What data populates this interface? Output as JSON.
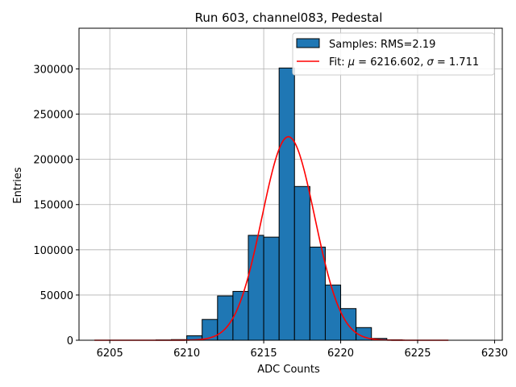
{
  "chart_data": {
    "type": "bar",
    "title": "Run 603, channel083, Pedestal",
    "xlabel": "ADC Counts",
    "ylabel": "Entries",
    "xlim": [
      6203,
      6230.5
    ],
    "ylim": [
      0,
      345000
    ],
    "xticks": [
      6205,
      6210,
      6215,
      6220,
      6225,
      6230
    ],
    "yticks": [
      0,
      50000,
      100000,
      150000,
      200000,
      250000,
      300000
    ],
    "grid": true,
    "legend_position": "top-right",
    "bin_width": 1,
    "series": [
      {
        "name": "Samples: RMS=2.19",
        "kind": "histogram",
        "color": "#1f77b4",
        "bins": [
          {
            "x0": 6208,
            "value": 300
          },
          {
            "x0": 6209,
            "value": 700
          },
          {
            "x0": 6210,
            "value": 5000
          },
          {
            "x0": 6211,
            "value": 23000
          },
          {
            "x0": 6212,
            "value": 49000
          },
          {
            "x0": 6213,
            "value": 54000
          },
          {
            "x0": 6214,
            "value": 116000
          },
          {
            "x0": 6215,
            "value": 114000
          },
          {
            "x0": 6216,
            "value": 301000
          },
          {
            "x0": 6217,
            "value": 170000
          },
          {
            "x0": 6218,
            "value": 103000
          },
          {
            "x0": 6219,
            "value": 61000
          },
          {
            "x0": 6220,
            "value": 35000
          },
          {
            "x0": 6221,
            "value": 14000
          },
          {
            "x0": 6222,
            "value": 2000
          },
          {
            "x0": 6223,
            "value": 500
          }
        ]
      },
      {
        "name": "Fit: μ = 6216.602, σ = 1.711",
        "name_prefix": "Fit: ",
        "name_mu": "μ",
        "name_mu_value": " = 6216.602, ",
        "name_sigma": "σ",
        "name_sigma_value": " = 1.711",
        "kind": "gaussian",
        "color": "#ff0000",
        "mu": 6216.602,
        "sigma": 1.711,
        "amplitude": 225000,
        "x_range": [
          6204,
          6227
        ]
      }
    ]
  }
}
